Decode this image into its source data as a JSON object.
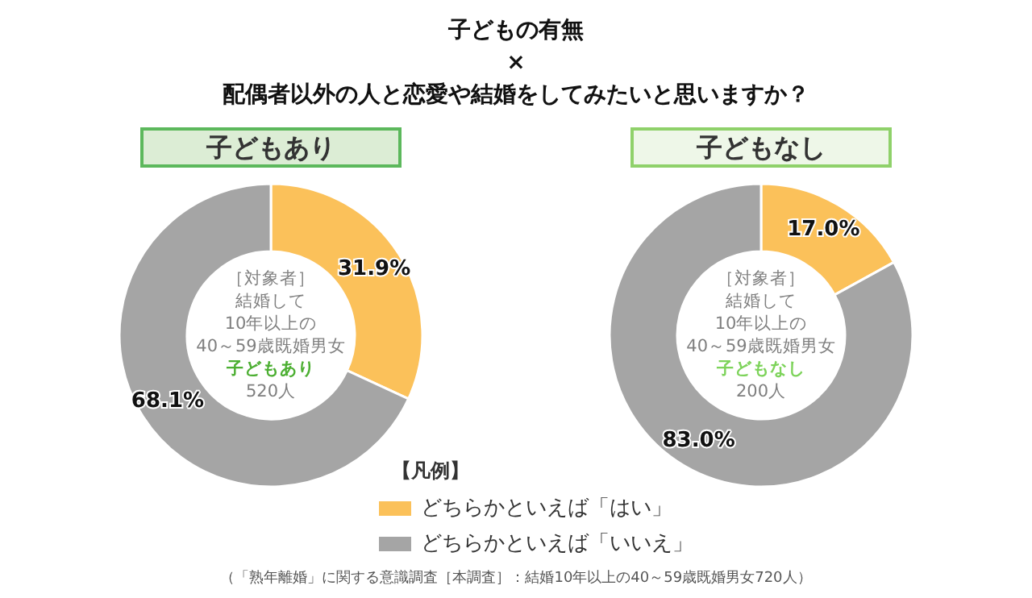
{
  "chart_data": {
    "type": "donut",
    "title": "子どもの有無\n×\n配偶者以外の人と恋愛や結婚をしてみたいと思いますか？",
    "legend_title": "【凡例】",
    "legend": "bottom",
    "categories": [
      "どちらかといえば「はい」",
      "どちらかといえば「いいえ」"
    ],
    "colors": [
      "#fbc15a",
      "#a5a5a5"
    ],
    "series": [
      {
        "name": "子どもあり",
        "values": [
          31.9,
          68.1
        ],
        "value_labels": [
          "31.9%",
          "68.1%"
        ]
      },
      {
        "name": "子どもなし",
        "values": [
          17.0,
          83.0
        ],
        "value_labels": [
          "17.0%",
          "83.0%"
        ]
      }
    ],
    "annotations": [
      "［対象者］",
      "結婚して",
      "10年以上の",
      "40～59歳既婚男女",
      "子どもあり",
      "520人",
      "［対象者］",
      "結婚して",
      "10年以上の",
      "40～59歳既婚男女",
      "子どもなし",
      "200人",
      "（「熟年離婚」に関する意識調査［本調査］：結婚10年以上の40～59歳既婚男女720人）"
    ]
  }
}
